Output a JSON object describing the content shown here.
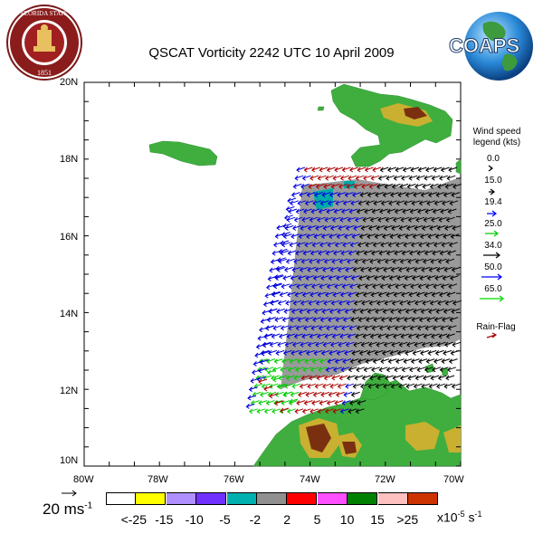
{
  "title": "QSCAT Vorticity 2242 UTC 10 April 2009",
  "logos": {
    "left": "FLORIDA STATE UNIVERSITY 1851",
    "right": "COAPS"
  },
  "axes": {
    "lon_labels": [
      "80W",
      "78W",
      "76W",
      "74W",
      "72W",
      "70W"
    ],
    "lat_labels": [
      "10N",
      "12N",
      "14N",
      "16N",
      "18N",
      "20N"
    ]
  },
  "legend": {
    "title_line1": "Wind speed",
    "title_line2": "legend (kts)",
    "speeds": [
      "0.0",
      "15.0",
      "19.4",
      "25.0",
      "34.0",
      "50.0",
      "65.0"
    ],
    "speed_colors": [
      "#000000",
      "#000000",
      "#000000",
      "#0000ff",
      "#00cc00",
      "#000000",
      "#0000ff",
      "#00dd00"
    ],
    "rain_flag": "Rain-Flag",
    "rain_flag_color": "#aa0000"
  },
  "scale": {
    "text": "20 ms",
    "exp": "-1"
  },
  "colorbar": {
    "colors": [
      "#ffffff",
      "#ffff00",
      "#b090ff",
      "#7030ff",
      "#00b0b0",
      "#909090",
      "#ff0000",
      "#ff50ff",
      "#008000",
      "#ffc0c0",
      "#cc3300"
    ],
    "labels": [
      "<-25",
      "-15",
      "-10",
      "-5",
      "-2",
      "2",
      "5",
      "10",
      "15",
      ">25"
    ],
    "unit": "x10",
    "unit_exp": "-5",
    "unit_tail": " s",
    "unit_tail_exp": "-1"
  }
}
